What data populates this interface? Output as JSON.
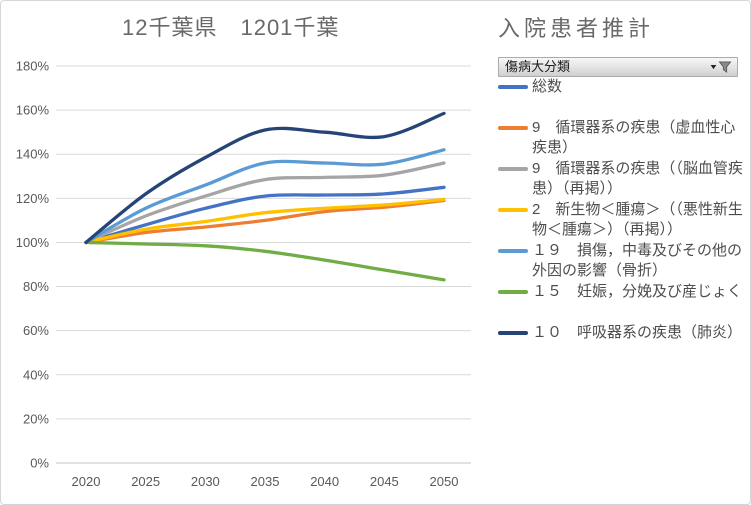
{
  "titles": {
    "left": "12千葉県　1201千葉",
    "right": "入院患者推計"
  },
  "filter": {
    "label": "傷病大分類",
    "dropdown_glyph": "▼",
    "icons": [
      "dropdown-arrow-icon",
      "funnel-filter-icon"
    ]
  },
  "colors": {
    "grid": "#d9d9d9",
    "axis_text": "#595959",
    "title_text": "#696969",
    "legend_text": "#4d4d4d",
    "filter_bar_border": "#ababab"
  },
  "chart_data": {
    "type": "line",
    "title": "12千葉県　1201千葉",
    "subtitle": "入院患者推計",
    "x": [
      2020,
      2025,
      2030,
      2035,
      2040,
      2045,
      2050
    ],
    "series": [
      {
        "name": "総数",
        "color": "#4472C4",
        "values": [
          100,
          108,
          115.5,
          121,
          121.5,
          122,
          125
        ]
      },
      {
        "name": "9　循環器系の疾患（虚血性心疾患）",
        "color": "#ED7D31",
        "values": [
          100,
          104.5,
          107,
          110,
          114,
          116,
          119
        ]
      },
      {
        "name": "9　循環器系の疾患（（脳血管疾患）（再掲））",
        "color": "#A5A5A5",
        "values": [
          100,
          112,
          121,
          128.5,
          129.5,
          130.5,
          136
        ]
      },
      {
        "name": "2　新生物＜腫瘍＞（（悪性新生物＜腫瘍＞）（再掲））",
        "color": "#FFC000",
        "values": [
          100,
          106,
          109.5,
          113.5,
          115.5,
          117,
          119.5
        ]
      },
      {
        "name": "１９　損傷，中毒及びその他の外因の影響（骨折）",
        "color": "#5B9BD5",
        "values": [
          100,
          115.5,
          126,
          136,
          136,
          135.5,
          142
        ]
      },
      {
        "name": "１５　妊娠，分娩及び産じょく",
        "color": "#70AD47",
        "values": [
          100,
          99.3,
          98.5,
          96,
          92,
          87.5,
          83
        ]
      },
      {
        "name": "１０　呼吸器系の疾患（肺炎）",
        "color": "#264478",
        "values": [
          100,
          122,
          138.5,
          151,
          150,
          148,
          158.5
        ]
      }
    ],
    "xlabel": "",
    "ylabel": "",
    "ylim": [
      0,
      180
    ],
    "ytick_step": 20,
    "ytick_format": "percent",
    "grid": true,
    "smooth_lines": true,
    "legend_position": "right"
  }
}
